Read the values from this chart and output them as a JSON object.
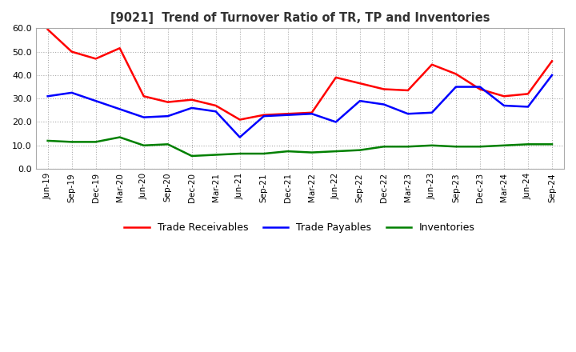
{
  "title": "[9021]  Trend of Turnover Ratio of TR, TP and Inventories",
  "x_labels": [
    "Jun-19",
    "Sep-19",
    "Dec-19",
    "Mar-20",
    "Jun-20",
    "Sep-20",
    "Dec-20",
    "Mar-21",
    "Jun-21",
    "Sep-21",
    "Dec-21",
    "Mar-22",
    "Jun-22",
    "Sep-22",
    "Dec-22",
    "Mar-23",
    "Jun-23",
    "Sep-23",
    "Dec-23",
    "Mar-24",
    "Jun-24",
    "Sep-24"
  ],
  "trade_receivables": [
    59.5,
    50.0,
    47.0,
    51.5,
    31.0,
    28.5,
    29.5,
    27.0,
    21.0,
    23.0,
    23.5,
    24.0,
    39.0,
    36.5,
    34.0,
    33.5,
    44.5,
    40.5,
    34.0,
    31.0,
    32.0,
    46.0
  ],
  "trade_payables": [
    31.0,
    32.5,
    29.0,
    25.5,
    22.0,
    22.5,
    26.0,
    24.5,
    13.5,
    22.5,
    23.0,
    23.5,
    20.0,
    29.0,
    27.5,
    23.5,
    24.0,
    35.0,
    35.0,
    27.0,
    26.5,
    40.0
  ],
  "inventories": [
    12.0,
    11.5,
    11.5,
    13.5,
    10.0,
    10.5,
    5.5,
    6.0,
    6.5,
    6.5,
    7.5,
    7.0,
    7.5,
    8.0,
    9.5,
    9.5,
    10.0,
    9.5,
    9.5,
    10.0,
    10.5,
    10.5
  ],
  "tr_color": "#ff0000",
  "tp_color": "#0000ff",
  "inv_color": "#008000",
  "ylim": [
    0.0,
    60.0
  ],
  "yticks": [
    0.0,
    10.0,
    20.0,
    30.0,
    40.0,
    50.0,
    60.0
  ],
  "legend_labels": [
    "Trade Receivables",
    "Trade Payables",
    "Inventories"
  ],
  "bg_color": "#ffffff",
  "grid_color": "#aaaaaa"
}
